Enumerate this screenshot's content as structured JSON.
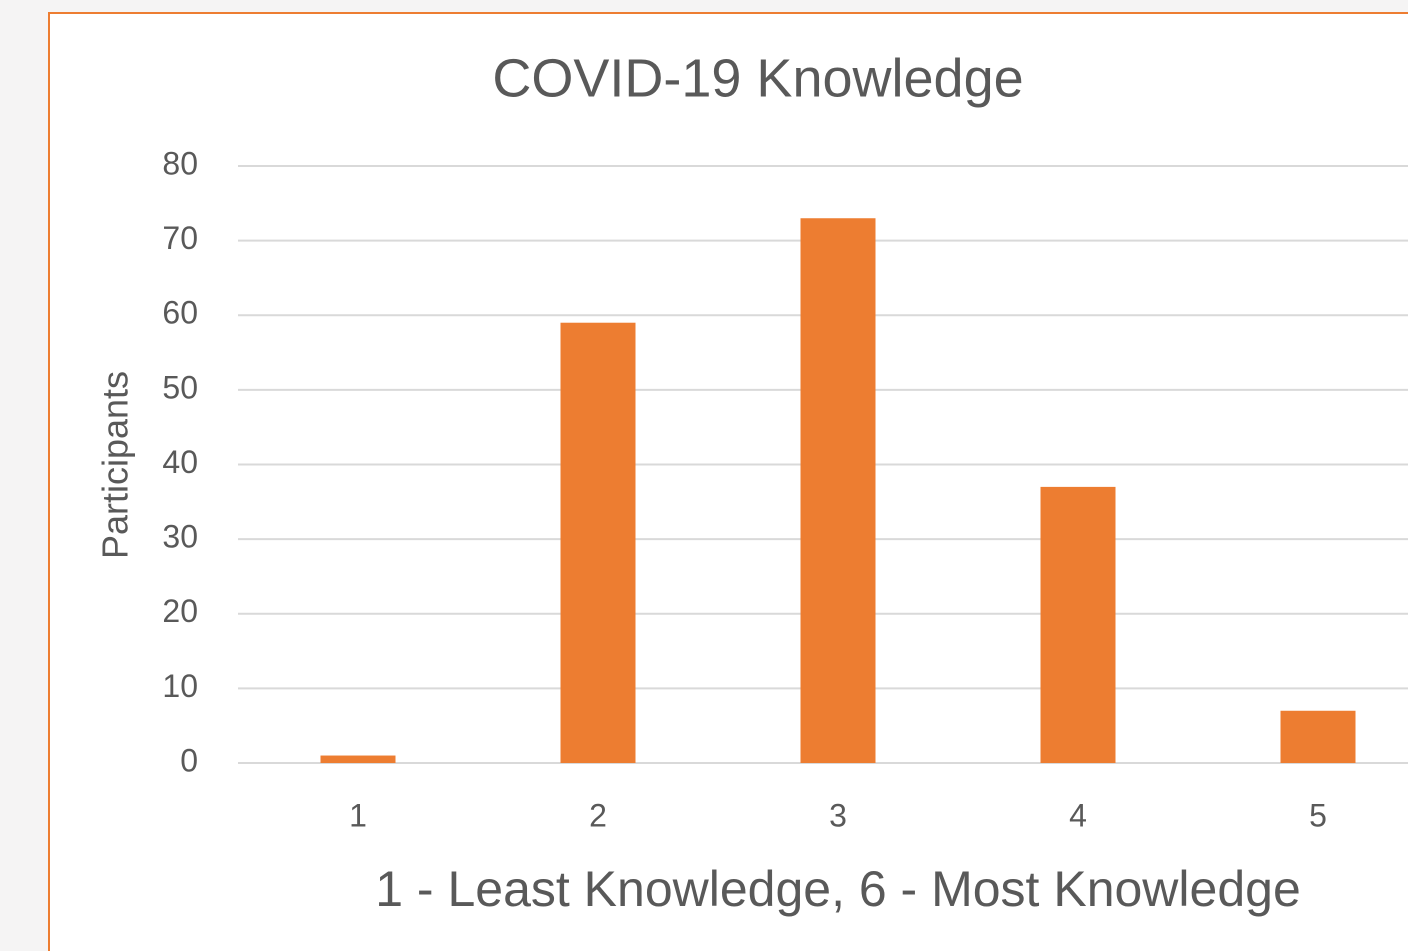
{
  "chart_data": {
    "type": "bar",
    "title": "COVID-19 Knowledge",
    "x_label": "1 - Least Knowledge, 6 - Most Knowledge",
    "y_label": "Participants",
    "categories": [
      "1",
      "2",
      "3",
      "4",
      "5"
    ],
    "values": [
      1,
      59,
      73,
      37,
      7
    ],
    "color": "#ed7d31",
    "ylim": [
      0,
      80
    ],
    "yticks": [
      0,
      10,
      20,
      30,
      40,
      50,
      60,
      70,
      80
    ],
    "grid": true
  }
}
